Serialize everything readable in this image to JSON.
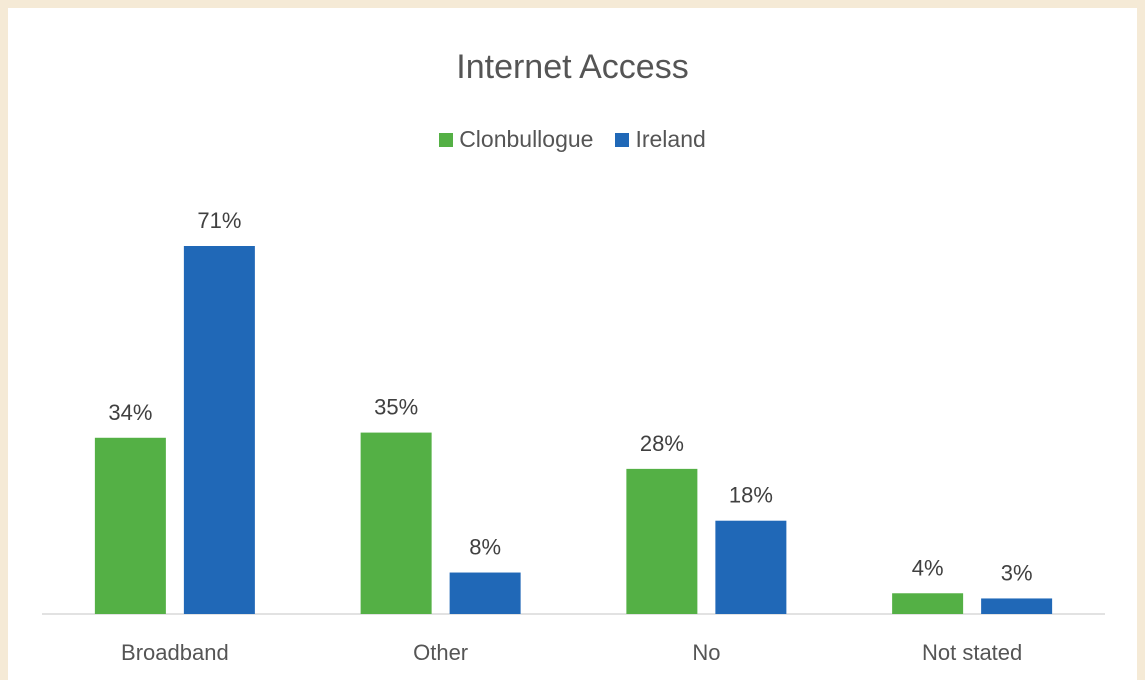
{
  "chart_data": {
    "type": "bar",
    "title": "Internet Access",
    "categories": [
      "Broadband",
      "Other",
      "No",
      "Not stated"
    ],
    "series": [
      {
        "name": "Clonbullogue",
        "values": [
          34,
          35,
          28,
          4
        ],
        "labels": [
          "34%",
          "35%",
          "28%",
          "4%"
        ],
        "color": "#54b045"
      },
      {
        "name": "Ireland",
        "values": [
          71,
          8,
          18,
          3
        ],
        "labels": [
          "71%",
          "8%",
          "18%",
          "3%"
        ],
        "color": "#2068b7"
      }
    ],
    "xlabel": "",
    "ylabel": "",
    "ylim": [
      0,
      71
    ],
    "grid": false,
    "legend_position": "top"
  }
}
